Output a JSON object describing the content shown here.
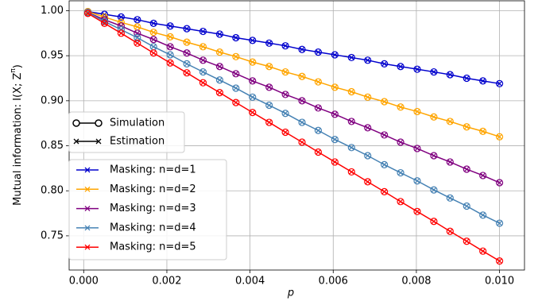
{
  "chart_data": {
    "type": "line",
    "xlabel": "p",
    "ylabel": [
      "Mutual information: I(X; Z",
      "π",
      ")"
    ],
    "style_legend": [
      "Simulation",
      "Estimation"
    ],
    "x": [
      0.0001,
      0.0005,
      0.0009,
      0.00129,
      0.00168,
      0.00208,
      0.00248,
      0.00287,
      0.00327,
      0.00366,
      0.00406,
      0.00446,
      0.00485,
      0.00525,
      0.00564,
      0.00604,
      0.00644,
      0.00683,
      0.00723,
      0.00762,
      0.00802,
      0.00842,
      0.00881,
      0.00921,
      0.0096,
      0.01
    ],
    "series": [
      {
        "name": "Masking: n=d=1",
        "color": "#0000cd",
        "values": [
          0.999,
          0.996,
          0.993,
          0.99,
          0.986,
          0.983,
          0.98,
          0.977,
          0.974,
          0.97,
          0.967,
          0.964,
          0.961,
          0.957,
          0.954,
          0.951,
          0.948,
          0.945,
          0.941,
          0.938,
          0.935,
          0.932,
          0.929,
          0.925,
          0.922,
          0.919
        ]
      },
      {
        "name": "Masking: n=d=2",
        "color": "#ffa500",
        "values": [
          0.999,
          0.993,
          0.987,
          0.982,
          0.976,
          0.971,
          0.965,
          0.96,
          0.954,
          0.949,
          0.943,
          0.938,
          0.932,
          0.927,
          0.921,
          0.915,
          0.91,
          0.904,
          0.899,
          0.893,
          0.888,
          0.882,
          0.877,
          0.871,
          0.866,
          0.86
        ]
      },
      {
        "name": "Masking: n=d=3",
        "color": "#800080",
        "values": [
          0.998,
          0.99,
          0.983,
          0.975,
          0.968,
          0.96,
          0.953,
          0.945,
          0.938,
          0.93,
          0.922,
          0.915,
          0.907,
          0.9,
          0.892,
          0.885,
          0.877,
          0.87,
          0.862,
          0.854,
          0.847,
          0.839,
          0.832,
          0.824,
          0.817,
          0.809
        ]
      },
      {
        "name": "Masking: n=d=4",
        "color": "#4682b4",
        "values": [
          0.998,
          0.988,
          0.979,
          0.97,
          0.96,
          0.951,
          0.941,
          0.932,
          0.923,
          0.914,
          0.904,
          0.895,
          0.886,
          0.876,
          0.867,
          0.857,
          0.848,
          0.839,
          0.829,
          0.82,
          0.811,
          0.801,
          0.792,
          0.783,
          0.773,
          0.764
        ]
      },
      {
        "name": "Masking: n=d=5",
        "color": "#ff0000",
        "values": [
          0.997,
          0.986,
          0.975,
          0.964,
          0.953,
          0.942,
          0.931,
          0.92,
          0.909,
          0.898,
          0.887,
          0.876,
          0.865,
          0.854,
          0.843,
          0.832,
          0.821,
          0.81,
          0.799,
          0.788,
          0.777,
          0.766,
          0.755,
          0.744,
          0.733,
          0.722
        ]
      }
    ],
    "xlim": [
      -0.00035,
      0.0106
    ],
    "ylim": [
      0.712,
      1.011
    ],
    "xticks": [
      {
        "value": 0,
        "label": "0.000"
      },
      {
        "value": 0.002,
        "label": "0.002"
      },
      {
        "value": 0.004,
        "label": "0.004"
      },
      {
        "value": 0.006,
        "label": "0.006"
      },
      {
        "value": 0.008,
        "label": "0.008"
      },
      {
        "value": 0.01,
        "label": "0.010"
      }
    ],
    "yticks": [
      {
        "value": 0.75,
        "label": "0.75"
      },
      {
        "value": 0.8,
        "label": "0.80"
      },
      {
        "value": 0.85,
        "label": "0.85"
      },
      {
        "value": 0.9,
        "label": "0.90"
      },
      {
        "value": 0.95,
        "label": "0.95"
      },
      {
        "value": 1,
        "label": "1.00"
      }
    ],
    "grid": true
  }
}
